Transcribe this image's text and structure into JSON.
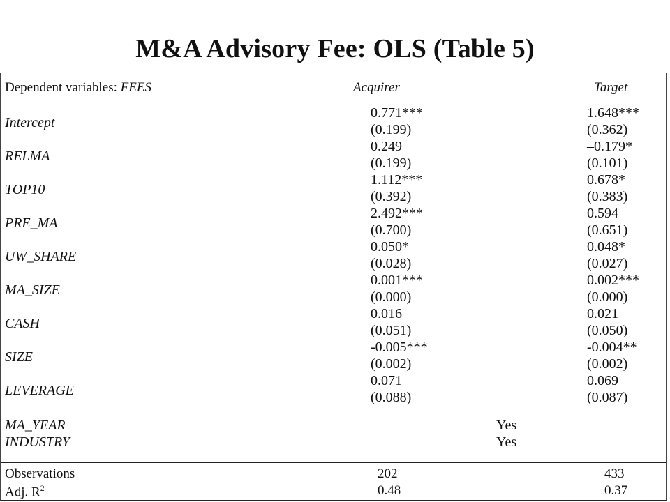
{
  "title": "M&A Advisory Fee: OLS (Table 5)",
  "header": {
    "dv_prefix": "Dependent variables: ",
    "dv_name": "FEES",
    "col_acquirer": "Acquirer",
    "col_target": "Target"
  },
  "rows": [
    {
      "var": "Intercept",
      "acq_coef": "0.771***",
      "acq_se": "(0.199)",
      "tgt_coef": "1.648***",
      "tgt_se": "(0.362)"
    },
    {
      "var": "RELMA",
      "acq_coef": "0.249",
      "acq_se": "(0.199)",
      "tgt_coef": "–0.179*",
      "tgt_se": "(0.101)"
    },
    {
      "var": "TOP10",
      "acq_coef": "1.112***",
      "acq_se": "(0.392)",
      "tgt_coef": "0.678*",
      "tgt_se": "(0.383)"
    },
    {
      "var": "PRE_MA",
      "acq_coef": "2.492***",
      "acq_se": "(0.700)",
      "tgt_coef": "0.594",
      "tgt_se": "(0.651)"
    },
    {
      "var": "UW_SHARE",
      "acq_coef": "0.050*",
      "acq_se": "(0.028)",
      "tgt_coef": "0.048*",
      "tgt_se": "(0.027)"
    },
    {
      "var": "MA_SIZE",
      "acq_coef": "0.001***",
      "acq_se": "(0.000)",
      "tgt_coef": "0.002***",
      "tgt_se": "(0.000)"
    },
    {
      "var": "CASH",
      "acq_coef": "0.016",
      "acq_se": "(0.051)",
      "tgt_coef": "0.021",
      "tgt_se": "(0.050)"
    },
    {
      "var": "SIZE",
      "acq_coef": "-0.005***",
      "acq_se": "(0.002)",
      "tgt_coef": "-0.004**",
      "tgt_se": "(0.002)"
    },
    {
      "var": "LEVERAGE",
      "acq_coef": "0.071",
      "acq_se": "(0.088)",
      "tgt_coef": "0.069",
      "tgt_se": "(0.087)"
    }
  ],
  "controls": [
    {
      "var": "MA_YEAR",
      "value": "Yes"
    },
    {
      "var": "INDUSTRY",
      "value": "Yes"
    }
  ],
  "stats": {
    "obs_label": "Observations",
    "obs_acq": "202",
    "obs_tgt": "433",
    "adjr2_label": "Adj. R",
    "adjr2_sup": "2",
    "adjr2_acq": "0.48",
    "adjr2_tgt": "0.37"
  }
}
